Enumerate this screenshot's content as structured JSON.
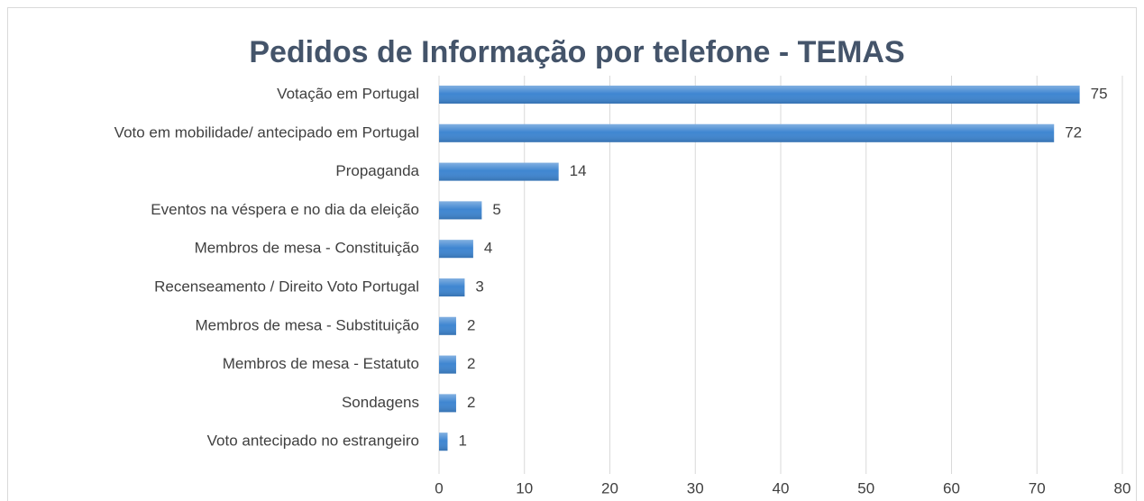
{
  "chart_data": {
    "type": "bar",
    "orientation": "horizontal",
    "title": "Pedidos de Informação por telefone - TEMAS",
    "categories": [
      "Votação em Portugal",
      "Voto em mobilidade/ antecipado em Portugal",
      "Propaganda",
      "Eventos na véspera e no dia da eleição",
      "Membros de mesa - Constituição",
      "Recenseamento / Direito Voto Portugal",
      "Membros de mesa - Substituição",
      "Membros de mesa - Estatuto",
      "Sondagens",
      "Voto antecipado no estrangeiro"
    ],
    "values": [
      75,
      72,
      14,
      5,
      4,
      3,
      2,
      2,
      2,
      1
    ],
    "color": "#3f86d1",
    "xlim": [
      0,
      80
    ],
    "xticks": [
      0,
      10,
      20,
      30,
      40,
      50,
      60,
      70,
      80
    ],
    "grid": true
  }
}
